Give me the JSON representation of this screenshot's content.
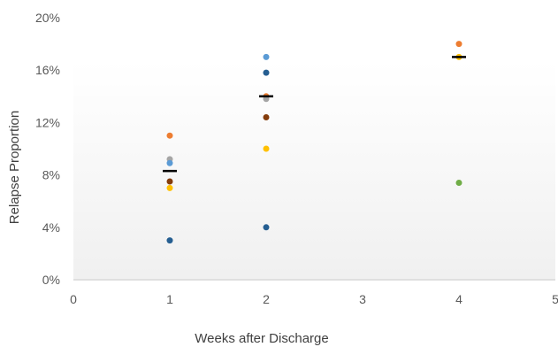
{
  "chart_data": {
    "type": "scatter",
    "title": "",
    "xlabel": "Weeks after Discharge",
    "ylabel": "Relapse Proportion",
    "xlim": [
      0,
      5
    ],
    "ylim": [
      0,
      20
    ],
    "x_ticks": [
      0,
      1,
      2,
      3,
      4,
      5
    ],
    "y_ticks": [
      "0%",
      "4%",
      "8%",
      "12%",
      "16%",
      "20%"
    ],
    "y_tick_values": [
      0,
      4,
      8,
      12,
      16,
      20
    ],
    "grid": false,
    "legend": "none",
    "points": [
      {
        "x": 1,
        "y": 11.0,
        "color": "#ED7D31"
      },
      {
        "x": 1,
        "y": 9.2,
        "color": "#A5A5A5"
      },
      {
        "x": 1,
        "y": 8.9,
        "color": "#5B9BD5"
      },
      {
        "x": 1,
        "y": 7.5,
        "color": "#843C0C"
      },
      {
        "x": 1,
        "y": 7.0,
        "color": "#FFC000"
      },
      {
        "x": 1,
        "y": 3.0,
        "color": "#255E91"
      },
      {
        "x": 2,
        "y": 17.0,
        "color": "#5B9BD5"
      },
      {
        "x": 2,
        "y": 15.8,
        "color": "#255E91"
      },
      {
        "x": 2,
        "y": 14.0,
        "color": "#ED7D31"
      },
      {
        "x": 2,
        "y": 13.8,
        "color": "#A5A5A5"
      },
      {
        "x": 2,
        "y": 12.4,
        "color": "#843C0C"
      },
      {
        "x": 2,
        "y": 10.0,
        "color": "#FFC000"
      },
      {
        "x": 2,
        "y": 4.0,
        "color": "#255E91"
      },
      {
        "x": 4,
        "y": 18.0,
        "color": "#ED7D31"
      },
      {
        "x": 4,
        "y": 17.0,
        "color": "#FFC000"
      },
      {
        "x": 4,
        "y": 7.4,
        "color": "#70AD47"
      }
    ],
    "means": [
      {
        "x": 1,
        "y": 8.3
      },
      {
        "x": 2,
        "y": 14.0
      },
      {
        "x": 4,
        "y": 17.0
      }
    ],
    "colors": {
      "background_top": "#ffffff",
      "background_bottom": "#f0f0f0",
      "axis": "#bfbfbf",
      "mean_marker": "#000000"
    }
  }
}
